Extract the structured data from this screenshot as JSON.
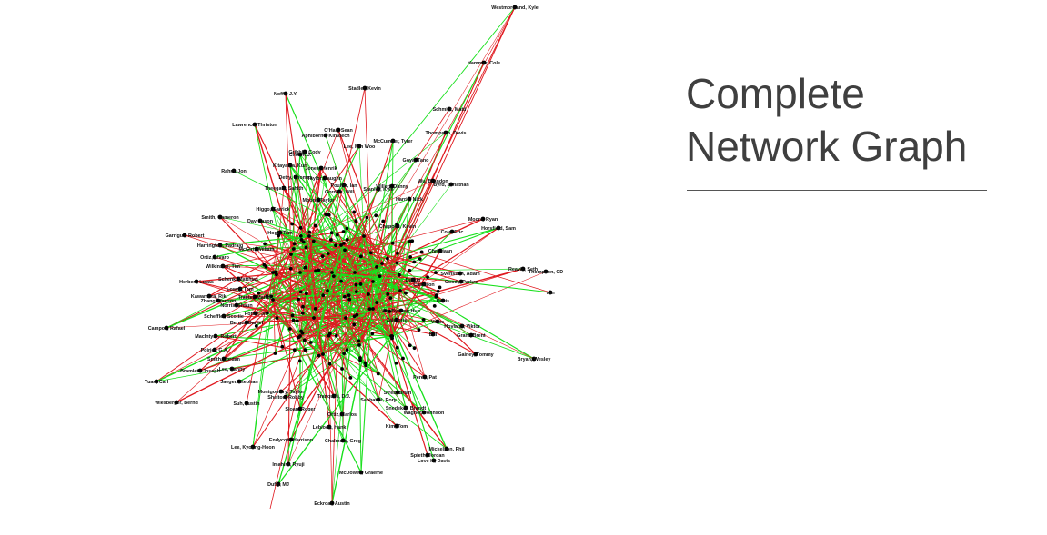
{
  "title": {
    "line1": "Complete",
    "line2": "Network Graph"
  },
  "colors": {
    "edge_red": "#e0191f",
    "edge_green": "#18e01c",
    "node": "#000000",
    "title": "#3f3f3f"
  },
  "graph": {
    "nodes": [
      "Westmoreland, Kyle",
      "Hammer, Cole",
      "Stadler, Kevin",
      "Noffo, J.Y.",
      "Schmidt, Matti",
      "Lawrence, Thriston",
      "Aphiborne, Kiradech",
      "O'Hair, Sean",
      "Thompson, Davis",
      "McCumber, Tyler",
      "Lee, Min Woo",
      "Gribble, Cody",
      "Choi, K.J.",
      "Kitayama, Kurt",
      "Jones, Henrik",
      "Goya, Tano",
      "Rahm, Jon",
      "Detry, Thomas",
      "Taylor, Vaughn",
      "Wu, Brandon",
      "Byrd, Jonathan",
      "Theegala, Sahith",
      "Poulter, Ian",
      "Gordon, Will",
      "Stanley, Kyle",
      "Willett, Danny",
      "Harris, Nick",
      "Moore, Taylor",
      "Higgo, Garrick",
      "Smith, Cameron",
      "Day, Jason",
      "Chappell, Kevin",
      "Moore, Ryan",
      "Horsfield, Sam",
      "Garrigus, Robert",
      "Harrington, Padraig",
      "McGirt, William",
      "Hoge, Tom",
      "Cole, Eric",
      "Christiaan",
      "Ortiz, Alvaro",
      "Wilkinson, Tim",
      "Svensson, Adam",
      "Reavie, Seth",
      "Thompson, CD",
      "van",
      "Herbert, Lucas",
      "Schenk, Matthias",
      "Kawamura, Riki",
      "Zhang, Hanson",
      "Lowry, Tom",
      "Trainer, Martin",
      "Norris, Shaun",
      "Dustin",
      "Cameron",
      "Coody, Parker",
      "Davis",
      "Scheffler, Scottie",
      "Potter, Jr.",
      "Berger, Daniel",
      "An, Byeong Hun",
      "Zalatoris",
      "Hovland, Viktor",
      "Vince",
      "Campos, Rafael",
      "MacIntyre, Robert",
      "Grant, Brent",
      "Bill",
      "Gainey, Tommy",
      "Poirier, G.A.",
      "Bryan, Wesley",
      "Smith, Jordan",
      "Jaeger, Stephan",
      "Lee, Danny",
      "Bramlett, Joseph",
      "Yuan, Carl",
      "Perez, Pat",
      "Montgomery, Taylor",
      "Shelton, Robby",
      "Streb, Brian",
      "Suh, Justin",
      "Wiesberger, Bernd",
      "Sabbatini, Rory",
      "Snedeker, Brandt",
      "Wagner, Johnson",
      "Sloan, Roger",
      "Ortiz, Carlos",
      "Tranquilli, D.J.",
      "Kim, Tom",
      "Lebioda, Hank",
      "Endycott, Harrison",
      "Chalmers, Greg",
      "Lee, Kyoung-Hoon",
      "Mickelson, Phil",
      "Spieth, Jordan",
      "Love III, Davis",
      "Imahira, Ryuji",
      "McDowell, Graeme",
      "Duffy, MJ",
      "Eckroat, Austin"
    ]
  }
}
